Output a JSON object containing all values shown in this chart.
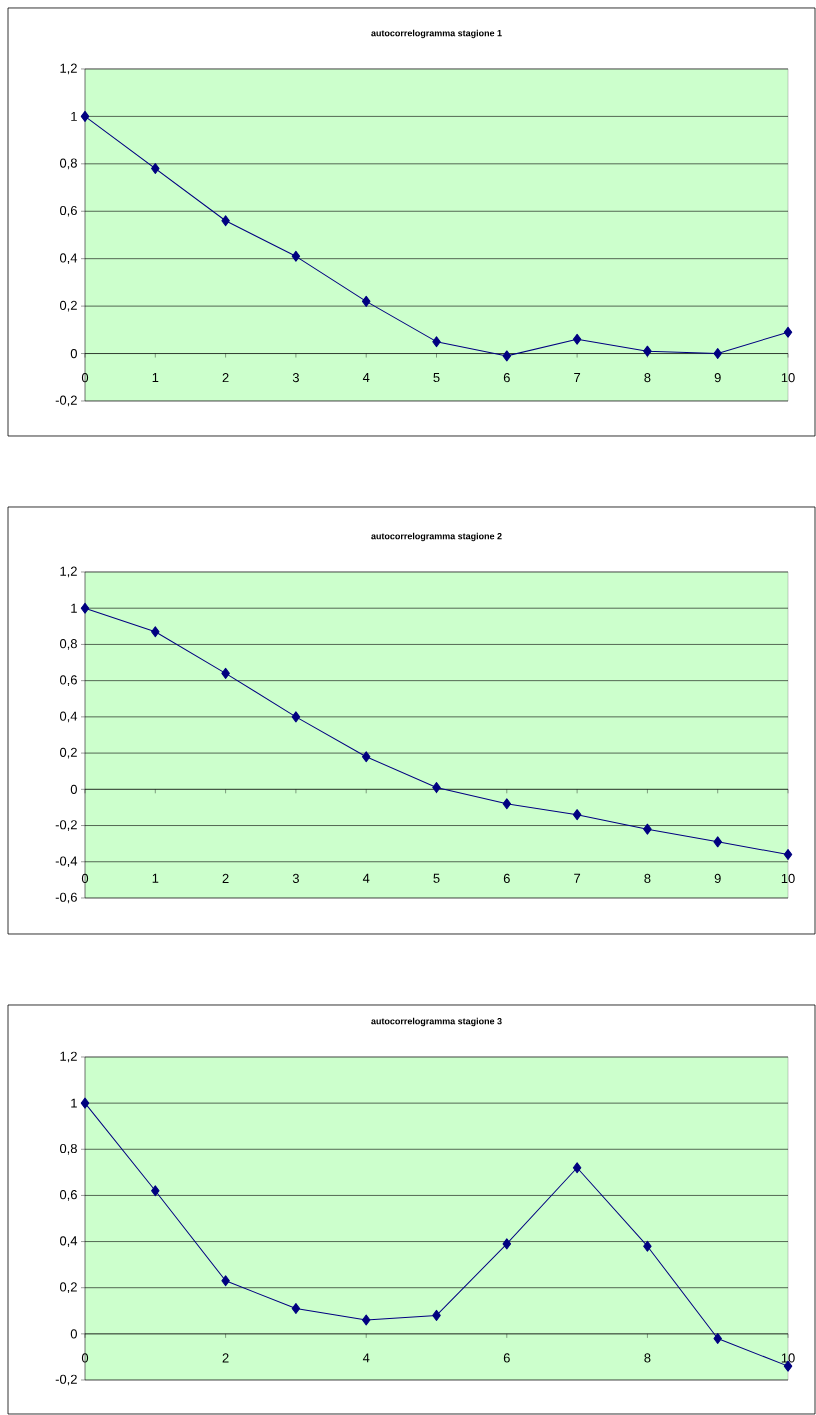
{
  "chart_data": [
    {
      "type": "line",
      "title": "autocorrelogramma stagione 1",
      "x": [
        0,
        1,
        2,
        3,
        4,
        5,
        6,
        7,
        8,
        9,
        10
      ],
      "values": [
        1,
        0.78,
        0.56,
        0.41,
        0.22,
        0.05,
        -0.01,
        0.06,
        0.01,
        0.0,
        0.09
      ],
      "color": "#000080",
      "marker": "diamond",
      "grid": "y",
      "xlim": [
        0,
        10
      ],
      "xticks": [
        0,
        1,
        2,
        3,
        4,
        5,
        6,
        7,
        8,
        9,
        10
      ],
      "ylim": [
        -0.2,
        1.2
      ],
      "yticks": [
        {
          "value": -0.2,
          "label": "-0,2"
        },
        {
          "value": 0,
          "label": "0"
        },
        {
          "value": 0.2,
          "label": "0,2"
        },
        {
          "value": 0.4,
          "label": "0,4"
        },
        {
          "value": 0.6,
          "label": "0,6"
        },
        {
          "value": 0.8,
          "label": "0,8"
        },
        {
          "value": 1,
          "label": "1"
        },
        {
          "value": 1.2,
          "label": "1,2"
        }
      ]
    },
    {
      "type": "line",
      "title": "autocorrelogramma stagione 2",
      "x": [
        0,
        1,
        2,
        3,
        4,
        5,
        6,
        7,
        8,
        9,
        10
      ],
      "values": [
        1,
        0.87,
        0.64,
        0.4,
        0.18,
        0.01,
        -0.08,
        -0.14,
        -0.22,
        -0.29,
        -0.36
      ],
      "color": "#000080",
      "marker": "diamond",
      "grid": "y",
      "xlim": [
        0,
        10
      ],
      "xticks": [
        0,
        1,
        2,
        3,
        4,
        5,
        6,
        7,
        8,
        9,
        10
      ],
      "ylim": [
        -0.6,
        1.2
      ],
      "yticks": [
        {
          "value": -0.6,
          "label": "-0,6"
        },
        {
          "value": -0.4,
          "label": "-0,4"
        },
        {
          "value": -0.2,
          "label": "-0,2"
        },
        {
          "value": 0,
          "label": "0"
        },
        {
          "value": 0.2,
          "label": "0,2"
        },
        {
          "value": 0.4,
          "label": "0,4"
        },
        {
          "value": 0.6,
          "label": "0,6"
        },
        {
          "value": 0.8,
          "label": "0,8"
        },
        {
          "value": 1,
          "label": "1"
        },
        {
          "value": 1.2,
          "label": "1,2"
        }
      ]
    },
    {
      "type": "line",
      "title": "autocorrelogramma stagione 3",
      "x": [
        0,
        1,
        2,
        3,
        4,
        5,
        6,
        7,
        8,
        9,
        10
      ],
      "values": [
        1,
        0.62,
        0.23,
        0.11,
        0.06,
        0.08,
        0.39,
        0.72,
        0.38,
        -0.02,
        -0.14
      ],
      "color": "#000080",
      "marker": "diamond",
      "grid": "y",
      "xlim": [
        0,
        10
      ],
      "xticks": [
        0,
        2,
        4,
        6,
        8,
        10
      ],
      "ylim": [
        -0.2,
        1.2
      ],
      "yticks": [
        {
          "value": -0.2,
          "label": "-0,2"
        },
        {
          "value": 0,
          "label": "0"
        },
        {
          "value": 0.2,
          "label": "0,2"
        },
        {
          "value": 0.4,
          "label": "0,4"
        },
        {
          "value": 0.6,
          "label": "0,6"
        },
        {
          "value": 0.8,
          "label": "0,8"
        },
        {
          "value": 1,
          "label": "1"
        },
        {
          "value": 1.2,
          "label": "1,2"
        }
      ]
    }
  ]
}
